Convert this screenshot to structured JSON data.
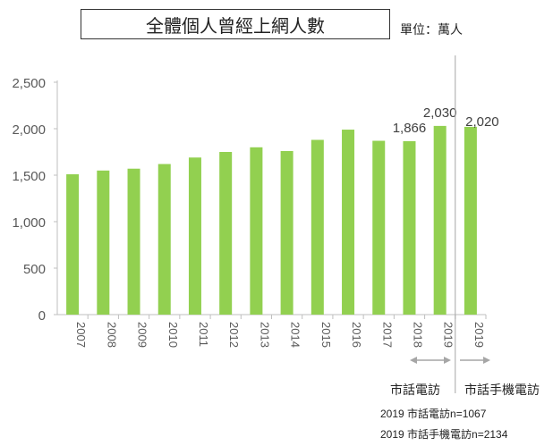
{
  "title": "全體個人曾經上網人數",
  "unit": "單位：萬人",
  "chart_data": {
    "type": "bar",
    "categories": [
      "2007",
      "2008",
      "2009",
      "2010",
      "2011",
      "2012",
      "2013",
      "2014",
      "2015",
      "2016",
      "2017",
      "2018",
      "2019",
      "2019"
    ],
    "values": [
      1510,
      1550,
      1570,
      1620,
      1690,
      1750,
      1800,
      1760,
      1880,
      1990,
      1870,
      1866,
      2030,
      2020
    ],
    "data_labels": [
      {
        "index": 11,
        "text": "1,866"
      },
      {
        "index": 12,
        "text": "2,030"
      },
      {
        "index": 13,
        "text": "2,020"
      }
    ],
    "ylim": [
      0,
      2500
    ],
    "yticks": [
      0,
      500,
      1000,
      1500,
      2000,
      2500
    ],
    "ytick_labels": [
      "0",
      "500",
      "1,000",
      "1,500",
      "2,000",
      "2,500"
    ],
    "bar_color": "#92d050",
    "grid": false,
    "divider_after_index": 12
  },
  "survey": {
    "landline_label": "市話電訪",
    "mobile_label": "市話手機電訪",
    "note_landline": "2019 市話電訪n=1067",
    "note_mobile": "2019 市話手機電訪n=2134"
  }
}
